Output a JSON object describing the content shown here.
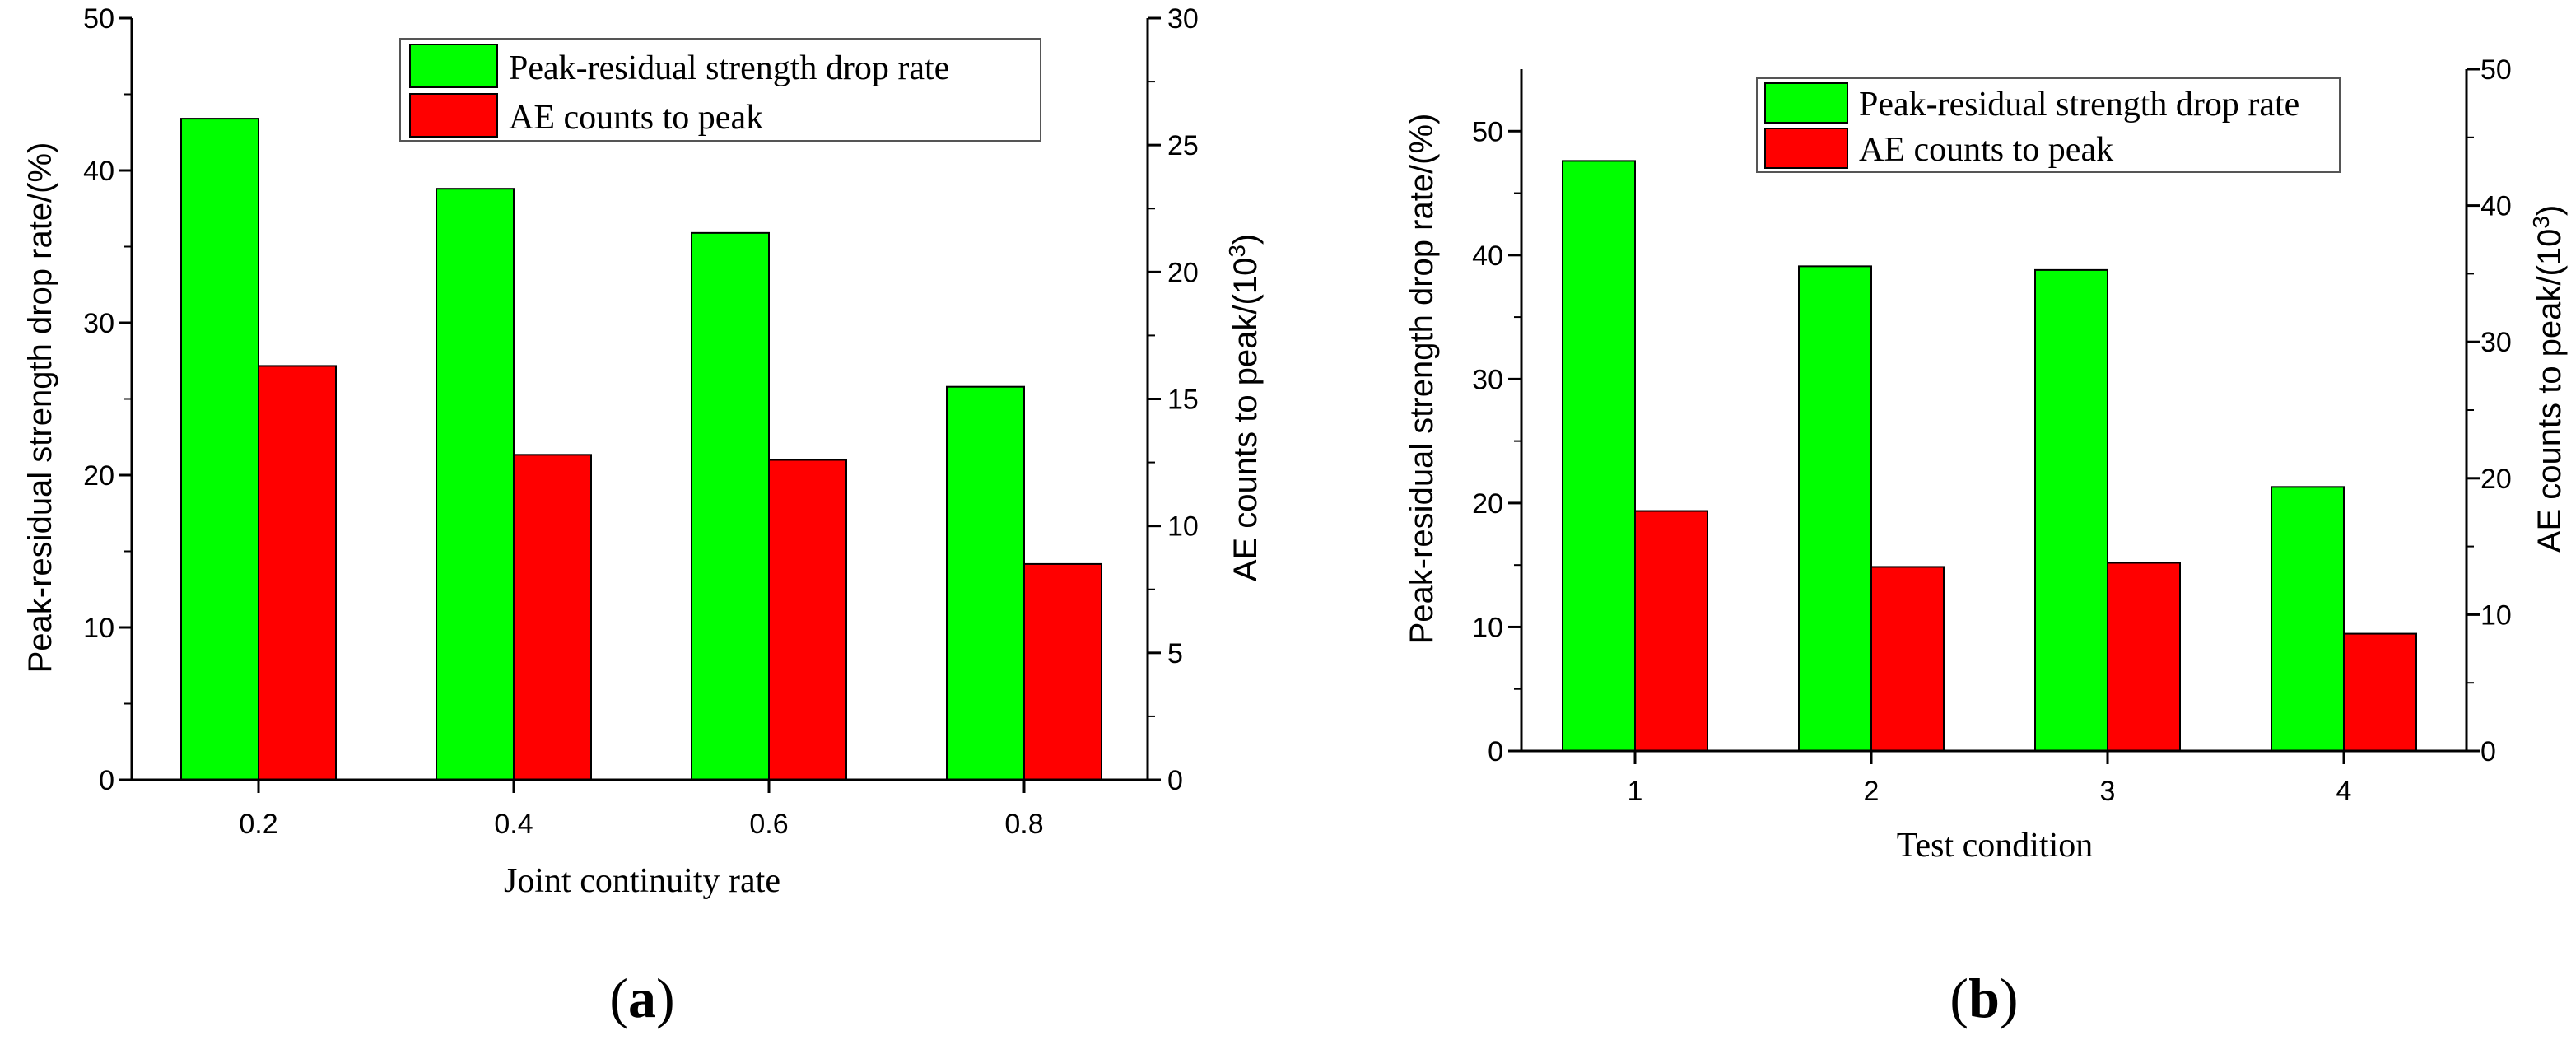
{
  "chart_data": [
    {
      "type": "bar",
      "panel": "(a)",
      "panel_letter": "a",
      "xlabel": "Joint continuity rate",
      "ylabel_left": "Peak-residual strength drop rate/(%)",
      "ylabel_right_prefix": "AE counts to peak/(10",
      "ylabel_right_sup": "3",
      "ylabel_right_suffix": ")",
      "categories": [
        "0.2",
        "0.4",
        "0.6",
        "0.8"
      ],
      "ylim_left": [
        0,
        50
      ],
      "yticks_left": [
        "0",
        "10",
        "20",
        "30",
        "40",
        "50"
      ],
      "ylim_right": [
        0,
        30
      ],
      "yticks_right": [
        "0",
        "5",
        "10",
        "15",
        "20",
        "25",
        "30"
      ],
      "series": [
        {
          "name": "Peak-residual strength drop rate",
          "axis": "left",
          "color": "#00ff00",
          "values": [
            43.4,
            38.8,
            35.9,
            25.8
          ]
        },
        {
          "name": "AE counts to peak",
          "axis": "right",
          "color": "#ff0000",
          "values": [
            16.3,
            12.8,
            12.6,
            8.5
          ]
        }
      ],
      "legend_position": "top-right"
    },
    {
      "type": "bar",
      "panel": "(b)",
      "panel_letter": "b",
      "xlabel": "Test condition",
      "ylabel_left": "Peak-residual strength drop rate/(%)",
      "ylabel_right_prefix": "AE counts to peak/(10",
      "ylabel_right_sup": "3",
      "ylabel_right_suffix": ")",
      "categories": [
        "1",
        "2",
        "3",
        "4"
      ],
      "ylim_left": [
        0,
        55
      ],
      "yticks_left": [
        "0",
        "10",
        "20",
        "30",
        "40",
        "50"
      ],
      "ylim_right": [
        0,
        50
      ],
      "yticks_right": [
        "0",
        "10",
        "20",
        "30",
        "40",
        "50"
      ],
      "series": [
        {
          "name": "Peak-residual strength drop rate",
          "axis": "left",
          "color": "#00ff00",
          "values": [
            47.6,
            39.1,
            38.8,
            21.3
          ]
        },
        {
          "name": "AE counts to peak",
          "axis": "right",
          "color": "#ff0000",
          "values": [
            17.6,
            13.5,
            13.8,
            8.6
          ]
        }
      ],
      "legend_position": "top-right"
    }
  ]
}
